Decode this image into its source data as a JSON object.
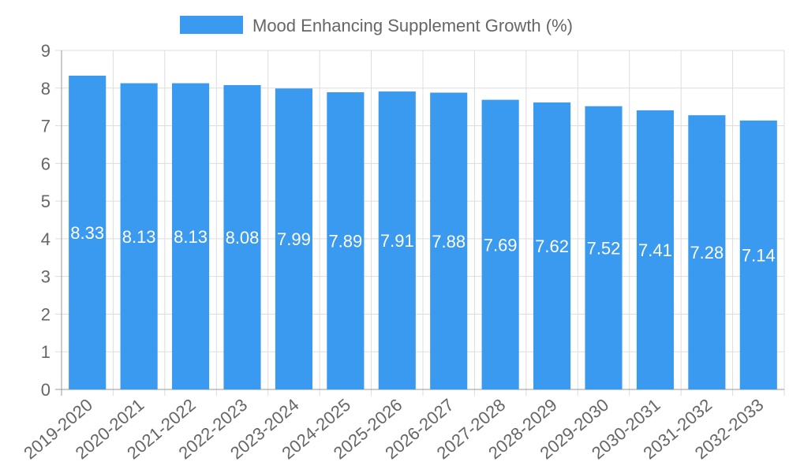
{
  "chart_data": {
    "type": "bar",
    "title": "",
    "xlabel": "",
    "ylabel": "",
    "categories": [
      "2019-2020",
      "2020-2021",
      "2021-2022",
      "2022-2023",
      "2023-2024",
      "2024-2025",
      "2025-2026",
      "2026-2027",
      "2027-2028",
      "2028-2029",
      "2029-2030",
      "2030-2031",
      "2031-2032",
      "2032-2033"
    ],
    "series": [
      {
        "name": "Mood Enhancing Supplement Growth (%)",
        "values": [
          8.33,
          8.13,
          8.13,
          8.08,
          7.99,
          7.89,
          7.91,
          7.88,
          7.69,
          7.62,
          7.52,
          7.41,
          7.28,
          7.14
        ],
        "color": "#3a9aef"
      }
    ],
    "ylim": [
      0,
      9
    ],
    "yticks": [
      0,
      1,
      2,
      3,
      4,
      5,
      6,
      7,
      8,
      9
    ],
    "grid": true,
    "legend_position": "top-center",
    "data_labels": true
  },
  "colors": {
    "grid": "#dddddd",
    "axis": "#999999",
    "text": "#666666"
  }
}
